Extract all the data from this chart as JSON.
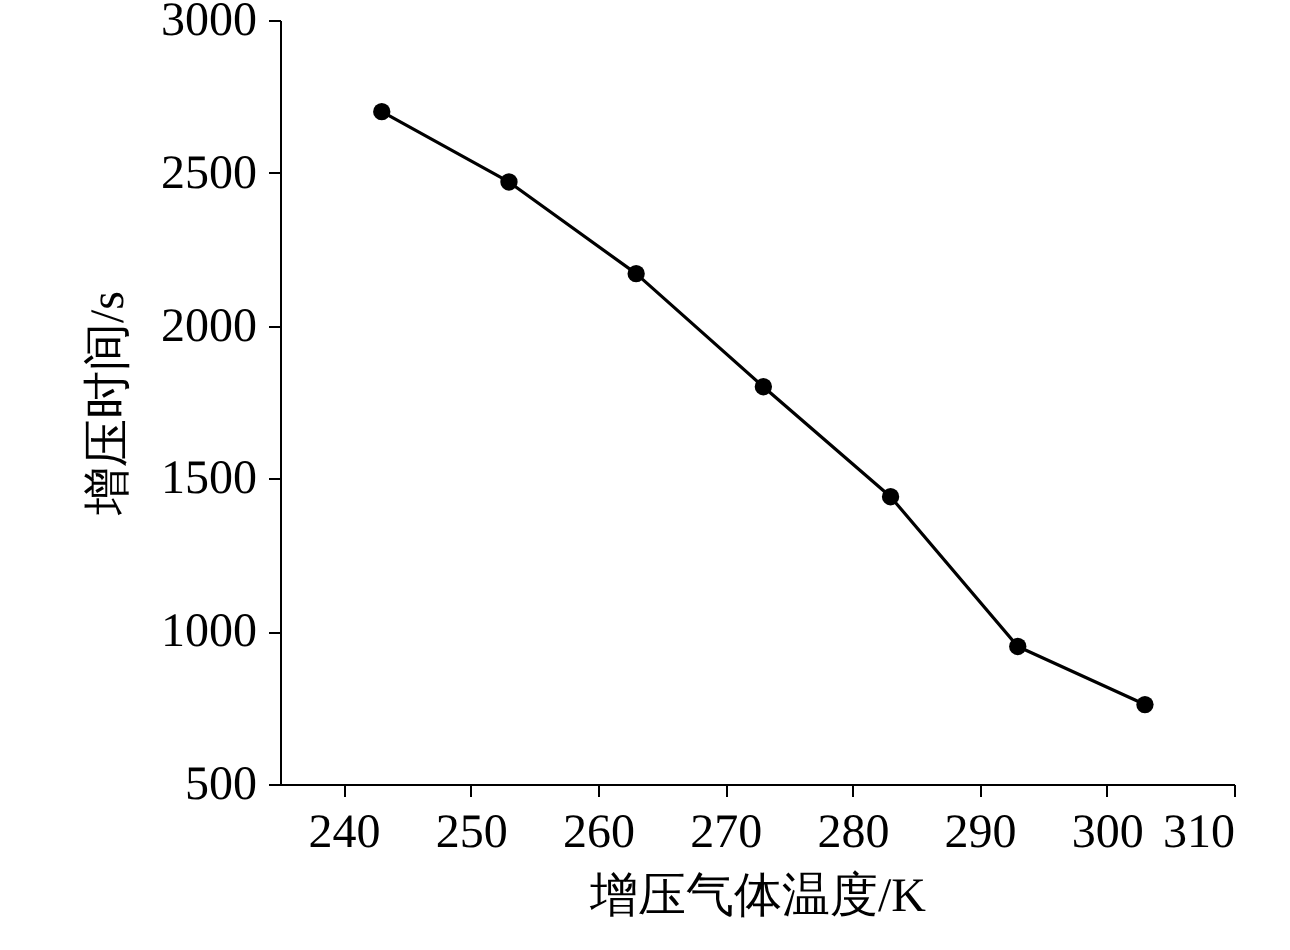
{
  "chart_data": {
    "type": "line",
    "xlabel": "增压气体温度/K",
    "ylabel": "增压时间/s",
    "x": [
      243,
      253,
      263,
      273,
      283,
      293,
      303
    ],
    "series": [
      {
        "color": "#000000",
        "values": [
          2700,
          2470,
          2170,
          1800,
          1440,
          950,
          760
        ]
      }
    ],
    "xlim": [
      235,
      310
    ],
    "xticks": [
      240,
      250,
      260,
      270,
      280,
      290,
      300,
      310
    ],
    "ylim": [
      500,
      3000
    ],
    "yticks": [
      500,
      1000,
      1500,
      2000,
      2500,
      3000
    ],
    "grid": false,
    "marker": "circle",
    "line_style": "solid"
  }
}
